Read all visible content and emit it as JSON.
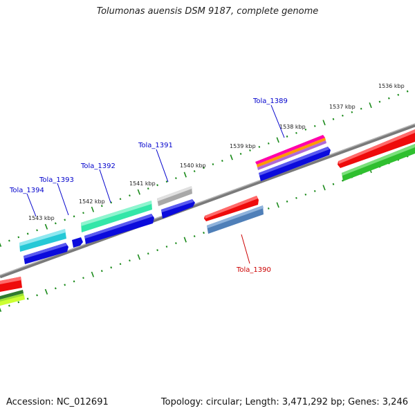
{
  "title": "Tolumonas auensis DSM 9187, complete genome",
  "footer": {
    "accession": "Accession: NC_012691",
    "summary": "Topology: circular; Length: 3,471,292 bp; Genes: 3,246"
  },
  "scale_labels": [
    "1536 kbp",
    "1537 kbp",
    "1538 kbp",
    "1539 kbp",
    "1540 kbp",
    "1541 kbp",
    "1542 kbp",
    "1543 kbp"
  ],
  "gene_labels": [
    {
      "id": "Tola_1389",
      "color": "#0000cc"
    },
    {
      "id": "Tola_1390",
      "color": "#cc0000"
    },
    {
      "id": "Tola_1391",
      "color": "#0000cc"
    },
    {
      "id": "Tola_1392",
      "color": "#0000cc"
    },
    {
      "id": "Tola_1393",
      "color": "#0000cc"
    },
    {
      "id": "Tola_1394",
      "color": "#0000cc"
    }
  ],
  "colors": {
    "backbone": "#8a8a8a",
    "tick": "#1a8a1a",
    "gene_blue": "#0b0bdc",
    "gene_red": "#ee0b0b",
    "gene_cyan": "#25c8d6",
    "gene_aqua": "#33e6a8",
    "gene_grey": "#b8b8b8",
    "gene_green": "#2fbf2f",
    "gene_steel": "#4f7fb8"
  }
}
